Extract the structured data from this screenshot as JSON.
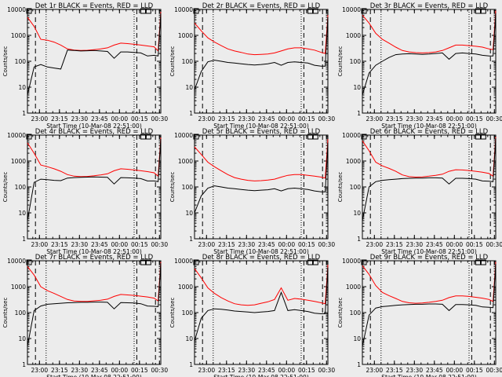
{
  "colors": {
    "events": "#000000",
    "lld": "#ff0000",
    "background": "#ececec"
  },
  "chart_data": [
    {
      "type": "line",
      "title": "Det 1r BLACK = Events, RED = LLD",
      "xlabel": "Start Time (10-Mar-08 22:51:00)",
      "ylabel": "Counts/sec",
      "x_ticks": [
        "23:00",
        "23:15",
        "23:30",
        "23:45",
        "00:00",
        "00:15",
        "00:30"
      ],
      "y_ticks": [
        "1",
        "10",
        "100",
        "1000",
        "10000"
      ],
      "ylim": [
        1,
        10000
      ],
      "yscale": "log",
      "x_minutes": [
        0,
        5,
        10,
        15,
        20,
        25,
        30,
        35,
        40,
        45,
        50,
        55,
        60,
        65,
        70,
        75,
        80,
        85,
        90,
        95,
        98,
        100
      ],
      "series": [
        {
          "name": "LLD",
          "values": [
            5000,
            2200,
            700,
            650,
            550,
            420,
            300,
            270,
            260,
            265,
            280,
            300,
            330,
            420,
            500,
            480,
            450,
            420,
            390,
            360,
            250,
            8000
          ]
        },
        {
          "name": "Events",
          "values": [
            5,
            60,
            75,
            60,
            55,
            50,
            270,
            260,
            250,
            255,
            260,
            250,
            240,
            130,
            230,
            230,
            220,
            210,
            160,
            170,
            160,
            7000
          ]
        }
      ]
    },
    {
      "type": "line",
      "title": "Det 2r BLACK = Events, RED = LLD",
      "xlabel": "Start Time (10-Mar-08 22:51:00)",
      "ylabel": "Counts/sec",
      "x_ticks": [
        "23:00",
        "23:15",
        "23:30",
        "23:45",
        "00:00",
        "00:15",
        "00:30"
      ],
      "y_ticks": [
        "1",
        "10",
        "100",
        "1000",
        "10000"
      ],
      "ylim": [
        1,
        10000
      ],
      "yscale": "log",
      "x_minutes": [
        0,
        5,
        10,
        15,
        20,
        25,
        30,
        35,
        40,
        45,
        50,
        55,
        60,
        65,
        70,
        75,
        80,
        85,
        90,
        95,
        98,
        100
      ],
      "series": [
        {
          "name": "LLD",
          "values": [
            3000,
            1500,
            800,
            550,
            400,
            300,
            250,
            220,
            190,
            180,
            185,
            190,
            210,
            250,
            300,
            330,
            330,
            300,
            270,
            220,
            200,
            6000
          ]
        },
        {
          "name": "Events",
          "values": [
            8,
            40,
            95,
            110,
            100,
            90,
            85,
            80,
            75,
            72,
            75,
            80,
            90,
            70,
            90,
            95,
            90,
            85,
            70,
            65,
            65,
            5000
          ]
        }
      ]
    },
    {
      "type": "line",
      "title": "Det 3r BLACK = Events, RED = LLD",
      "xlabel": "Start Time (10-Mar-08 22:51:00)",
      "ylabel": "Counts/sec",
      "x_ticks": [
        "23:00",
        "23:15",
        "23:30",
        "23:45",
        "00:00",
        "00:15",
        "00:30"
      ],
      "y_ticks": [
        "1",
        "10",
        "100",
        "1000",
        "10000"
      ],
      "ylim": [
        1,
        10000
      ],
      "yscale": "log",
      "x_minutes": [
        0,
        5,
        10,
        15,
        20,
        25,
        30,
        35,
        40,
        45,
        50,
        55,
        60,
        65,
        70,
        75,
        80,
        85,
        90,
        95,
        98,
        100
      ],
      "series": [
        {
          "name": "LLD",
          "values": [
            6000,
            3000,
            1200,
            700,
            500,
            350,
            260,
            230,
            215,
            210,
            215,
            230,
            260,
            330,
            420,
            420,
            400,
            380,
            350,
            300,
            280,
            9000
          ]
        },
        {
          "name": "Events",
          "values": [
            5,
            35,
            70,
            100,
            140,
            180,
            190,
            195,
            190,
            185,
            190,
            200,
            210,
            120,
            200,
            210,
            200,
            190,
            170,
            160,
            160,
            7000
          ]
        }
      ]
    },
    {
      "type": "line",
      "title": "Det 4r BLACK = Events, RED = LLD",
      "xlabel": "Start Time (10-Mar-08 22:51:00)",
      "ylabel": "Counts/sec",
      "x_ticks": [
        "23:00",
        "23:15",
        "23:30",
        "23:45",
        "00:00",
        "00:15",
        "00:30"
      ],
      "y_ticks": [
        "1",
        "10",
        "100",
        "1000",
        "10000"
      ],
      "ylim": [
        1,
        10000
      ],
      "yscale": "log",
      "x_minutes": [
        0,
        5,
        10,
        15,
        20,
        25,
        30,
        35,
        40,
        45,
        50,
        55,
        60,
        65,
        70,
        75,
        80,
        85,
        90,
        95,
        98,
        100
      ],
      "series": [
        {
          "name": "LLD",
          "values": [
            5000,
            2000,
            700,
            600,
            500,
            400,
            300,
            260,
            250,
            255,
            270,
            290,
            320,
            420,
            500,
            480,
            450,
            420,
            390,
            350,
            260,
            8000
          ]
        },
        {
          "name": "Events",
          "values": [
            5,
            150,
            200,
            190,
            180,
            175,
            220,
            230,
            235,
            240,
            245,
            240,
            235,
            130,
            230,
            225,
            220,
            210,
            170,
            170,
            160,
            7000
          ]
        }
      ]
    },
    {
      "type": "line",
      "title": "Det 5r BLACK = Events, RED = LLD",
      "xlabel": "Start Time (10-Mar-08 22:51:00)",
      "ylabel": "Counts/sec",
      "x_ticks": [
        "23:00",
        "23:15",
        "23:30",
        "23:45",
        "00:00",
        "00:15",
        "00:30"
      ],
      "y_ticks": [
        "1",
        "10",
        "100",
        "1000",
        "10000"
      ],
      "ylim": [
        1,
        10000
      ],
      "yscale": "log",
      "x_minutes": [
        0,
        5,
        10,
        15,
        20,
        25,
        30,
        35,
        40,
        45,
        50,
        55,
        60,
        65,
        70,
        75,
        80,
        85,
        90,
        95,
        98,
        100
      ],
      "series": [
        {
          "name": "LLD",
          "values": [
            3500,
            1800,
            900,
            600,
            420,
            300,
            230,
            200,
            180,
            170,
            175,
            185,
            200,
            240,
            280,
            300,
            300,
            280,
            260,
            240,
            220,
            7000
          ]
        },
        {
          "name": "Events",
          "values": [
            10,
            45,
            90,
            110,
            100,
            90,
            85,
            80,
            75,
            72,
            75,
            78,
            85,
            70,
            85,
            90,
            85,
            80,
            70,
            65,
            65,
            5000
          ]
        }
      ]
    },
    {
      "type": "line",
      "title": "Det 6r BLACK = Events, RED = LLD",
      "xlabel": "Start Time (10-Mar-08 22:51:00)",
      "ylabel": "Counts/sec",
      "x_ticks": [
        "23:00",
        "23:15",
        "23:30",
        "23:45",
        "00:00",
        "00:15",
        "00:30"
      ],
      "y_ticks": [
        "1",
        "10",
        "100",
        "1000",
        "10000"
      ],
      "ylim": [
        1,
        10000
      ],
      "yscale": "log",
      "x_minutes": [
        0,
        5,
        10,
        15,
        20,
        25,
        30,
        35,
        40,
        45,
        50,
        55,
        60,
        65,
        70,
        75,
        80,
        85,
        90,
        95,
        98,
        100
      ],
      "series": [
        {
          "name": "LLD",
          "values": [
            6000,
            2500,
            900,
            650,
            520,
            400,
            290,
            250,
            240,
            245,
            260,
            280,
            310,
            400,
            460,
            450,
            430,
            400,
            370,
            330,
            260,
            8500
          ]
        },
        {
          "name": "Events",
          "values": [
            5,
            100,
            160,
            180,
            190,
            200,
            210,
            215,
            220,
            220,
            225,
            225,
            220,
            130,
            215,
            215,
            210,
            200,
            170,
            165,
            160,
            7500
          ]
        }
      ]
    },
    {
      "type": "line",
      "title": "Det 7r BLACK = Events, RED = LLD",
      "xlabel": "Start Time (10-Mar-08 22:51:00)",
      "ylabel": "Counts/sec",
      "x_ticks": [
        "23:00",
        "23:15",
        "23:30",
        "23:45",
        "00:00",
        "00:15",
        "00:30"
      ],
      "y_ticks": [
        "1",
        "10",
        "100",
        "1000",
        "10000"
      ],
      "ylim": [
        1,
        10000
      ],
      "yscale": "log",
      "x_minutes": [
        0,
        5,
        10,
        15,
        20,
        25,
        30,
        35,
        40,
        45,
        50,
        55,
        60,
        65,
        70,
        75,
        80,
        85,
        90,
        95,
        98,
        100
      ],
      "series": [
        {
          "name": "LLD",
          "values": [
            6000,
            2800,
            1000,
            700,
            550,
            420,
            320,
            280,
            270,
            270,
            285,
            300,
            330,
            420,
            500,
            480,
            460,
            430,
            400,
            360,
            280,
            9000
          ]
        },
        {
          "name": "Events",
          "values": [
            5,
            120,
            180,
            210,
            220,
            230,
            240,
            245,
            250,
            250,
            255,
            255,
            250,
            140,
            245,
            240,
            235,
            220,
            180,
            175,
            170,
            8000
          ]
        }
      ]
    },
    {
      "type": "line",
      "title": "Det 8r BLACK = Events, RED = LLD",
      "xlabel": "Start Time (10-Mar-08 22:51:00)",
      "ylabel": "Counts/sec",
      "x_ticks": [
        "23:00",
        "23:15",
        "23:30",
        "23:45",
        "00:00",
        "00:15",
        "00:30"
      ],
      "y_ticks": [
        "1",
        "10",
        "100",
        "1000",
        "10000"
      ],
      "ylim": [
        1,
        10000
      ],
      "yscale": "log",
      "x_minutes": [
        0,
        5,
        10,
        15,
        20,
        25,
        30,
        35,
        40,
        45,
        50,
        55,
        60,
        65,
        70,
        75,
        80,
        85,
        90,
        95,
        98,
        100
      ],
      "series": [
        {
          "name": "LLD",
          "values": [
            5000,
            2200,
            900,
            550,
            380,
            280,
            220,
            200,
            190,
            200,
            230,
            260,
            320,
            900,
            300,
            350,
            330,
            300,
            270,
            240,
            220,
            7000
          ]
        },
        {
          "name": "Events",
          "values": [
            8,
            60,
            120,
            140,
            135,
            125,
            115,
            110,
            105,
            100,
            105,
            110,
            120,
            600,
            120,
            130,
            120,
            110,
            95,
            90,
            90,
            5500
          ]
        }
      ]
    },
    {
      "type": "line",
      "title": "Det 9r BLACK = Events, RED = LLD",
      "xlabel": "Start Time (10-Mar-08 22:51:00)",
      "ylabel": "Counts/sec",
      "x_ticks": [
        "23:00",
        "23:15",
        "23:30",
        "23:45",
        "00:00",
        "00:15",
        "00:30"
      ],
      "y_ticks": [
        "1",
        "10",
        "100",
        "1000",
        "10000"
      ],
      "ylim": [
        1,
        10000
      ],
      "yscale": "log",
      "x_minutes": [
        0,
        5,
        10,
        15,
        20,
        25,
        30,
        35,
        40,
        45,
        50,
        55,
        60,
        65,
        70,
        75,
        80,
        85,
        90,
        95,
        98,
        100
      ],
      "series": [
        {
          "name": "LLD",
          "values": [
            6500,
            3000,
            1100,
            600,
            450,
            350,
            270,
            240,
            230,
            235,
            250,
            270,
            300,
            380,
            440,
            440,
            420,
            390,
            360,
            320,
            270,
            9000
          ]
        },
        {
          "name": "Events",
          "values": [
            5,
            80,
            150,
            170,
            180,
            190,
            200,
            205,
            210,
            210,
            215,
            215,
            210,
            120,
            205,
            205,
            200,
            190,
            165,
            160,
            155,
            7500
          ]
        }
      ]
    }
  ]
}
